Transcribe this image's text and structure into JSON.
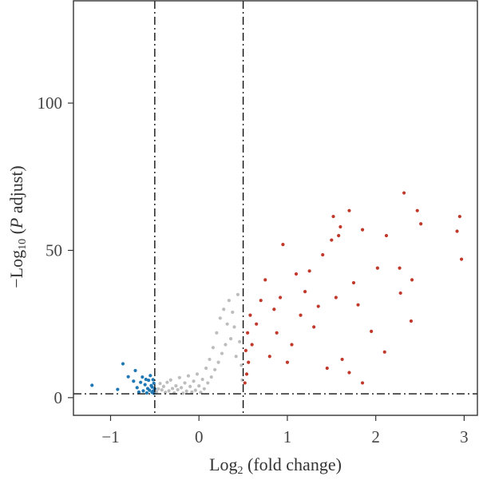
{
  "chart_data": {
    "type": "scatter",
    "title": "",
    "xlabel": {
      "main": "Log",
      "subscript": "2",
      "rest": " (fold change)"
    },
    "ylabel": {
      "prefix": "−Log",
      "subscript": "10",
      "middle": " (",
      "italic": "P",
      "suffix": " adjust)"
    },
    "xlim": [
      -1.42,
      3.15
    ],
    "ylim": [
      -6,
      135
    ],
    "x_ticks": [
      -1,
      0,
      1,
      2,
      3
    ],
    "x_tick_labels": [
      "−1",
      "0",
      "1",
      "2",
      "3"
    ],
    "y_ticks": [
      0,
      50,
      100
    ],
    "y_tick_labels": [
      "0",
      "50",
      "100"
    ],
    "grid": false,
    "legend": "none",
    "thresholds": {
      "log2fc_lower": -0.5,
      "log2fc_upper": 0.5,
      "neg_log10_padj": 1.3
    },
    "colors": {
      "up": "#c0392b",
      "down": "#1f77b4",
      "ns": "#bdbdbd",
      "threshold_line": "#111111"
    },
    "series": [
      {
        "group": "down",
        "points": [
          [
            -1.21,
            4.2
          ],
          [
            -0.92,
            2.8
          ],
          [
            -0.86,
            11.5
          ],
          [
            -0.8,
            7.1
          ],
          [
            -0.74,
            5.6
          ],
          [
            -0.72,
            9.2
          ],
          [
            -0.7,
            3.4
          ],
          [
            -0.68,
            1.9
          ],
          [
            -0.66,
            5.2
          ],
          [
            -0.64,
            7.0
          ],
          [
            -0.63,
            2.3
          ],
          [
            -0.61,
            4.4
          ],
          [
            -0.6,
            6.2
          ],
          [
            -0.59,
            1.6
          ],
          [
            -0.58,
            3.1
          ],
          [
            -0.57,
            5.9
          ],
          [
            -0.56,
            2.5
          ],
          [
            -0.55,
            7.5
          ],
          [
            -0.54,
            4.1
          ],
          [
            -0.53,
            1.8
          ],
          [
            -0.53,
            3.6
          ],
          [
            -0.52,
            6.1
          ],
          [
            -0.52,
            2.2
          ],
          [
            -0.51,
            4.9
          ],
          [
            -0.51,
            1.5
          ],
          [
            -0.5,
            3.0
          ]
        ]
      },
      {
        "group": "up",
        "points": [
          [
            2.32,
            69.5
          ],
          [
            2.95,
            61.5
          ],
          [
            2.97,
            47.0
          ],
          [
            2.47,
            63.5
          ],
          [
            2.51,
            59.0
          ],
          [
            2.92,
            56.5
          ],
          [
            1.7,
            63.5
          ],
          [
            1.85,
            57.0
          ],
          [
            2.12,
            55.0
          ],
          [
            2.02,
            44.0
          ],
          [
            2.27,
            44.0
          ],
          [
            2.41,
            40.0
          ],
          [
            2.1,
            15.5
          ],
          [
            1.95,
            22.5
          ],
          [
            2.4,
            26.0
          ],
          [
            2.28,
            35.5
          ],
          [
            1.58,
            55.0
          ],
          [
            1.5,
            53.5
          ],
          [
            1.6,
            58.0
          ],
          [
            1.52,
            61.5
          ],
          [
            1.4,
            48.5
          ],
          [
            1.75,
            39.0
          ],
          [
            1.8,
            31.5
          ],
          [
            1.55,
            34.0
          ],
          [
            1.62,
            13.0
          ],
          [
            1.7,
            8.5
          ],
          [
            1.85,
            5.0
          ],
          [
            1.2,
            36.0
          ],
          [
            1.1,
            42.0
          ],
          [
            1.25,
            43.0
          ],
          [
            0.95,
            52.0
          ],
          [
            0.88,
            22.0
          ],
          [
            0.75,
            40.0
          ],
          [
            0.85,
            30.0
          ],
          [
            0.92,
            34.0
          ],
          [
            1.0,
            12.0
          ],
          [
            1.05,
            18.0
          ],
          [
            0.8,
            14.0
          ],
          [
            1.15,
            28.0
          ],
          [
            1.3,
            24.0
          ],
          [
            1.45,
            10.0
          ],
          [
            1.35,
            31.0
          ],
          [
            0.7,
            33.0
          ],
          [
            0.65,
            25.0
          ],
          [
            0.6,
            18.0
          ],
          [
            0.58,
            28.0
          ],
          [
            0.56,
            12.0
          ],
          [
            0.55,
            22.0
          ],
          [
            0.54,
            8.0
          ],
          [
            0.53,
            16.0
          ],
          [
            0.52,
            5.0
          ]
        ]
      },
      {
        "group": "ns",
        "points": [
          [
            -0.48,
            2.0
          ],
          [
            -0.46,
            3.0
          ],
          [
            -0.44,
            4.8
          ],
          [
            -0.42,
            2.6
          ],
          [
            -0.4,
            3.8
          ],
          [
            -0.38,
            1.8
          ],
          [
            -0.36,
            5.2
          ],
          [
            -0.34,
            2.3
          ],
          [
            -0.32,
            6.0
          ],
          [
            -0.3,
            3.1
          ],
          [
            -0.28,
            1.6
          ],
          [
            -0.26,
            4.0
          ],
          [
            -0.24,
            2.7
          ],
          [
            -0.22,
            6.8
          ],
          [
            -0.2,
            3.4
          ],
          [
            -0.18,
            1.5
          ],
          [
            -0.16,
            5.0
          ],
          [
            -0.14,
            2.2
          ],
          [
            -0.12,
            7.4
          ],
          [
            -0.1,
            3.8
          ],
          [
            -0.08,
            1.9
          ],
          [
            -0.06,
            5.6
          ],
          [
            -0.04,
            2.5
          ],
          [
            -0.02,
            8.0
          ],
          [
            0.0,
            4.0
          ],
          [
            0.02,
            1.8
          ],
          [
            0.04,
            6.2
          ],
          [
            0.06,
            3.0
          ],
          [
            0.08,
            10.0
          ],
          [
            0.1,
            5.0
          ],
          [
            0.12,
            13.0
          ],
          [
            0.14,
            7.0
          ],
          [
            0.16,
            17.0
          ],
          [
            0.18,
            9.5
          ],
          [
            0.2,
            22.0
          ],
          [
            0.22,
            12.0
          ],
          [
            0.24,
            27.0
          ],
          [
            0.26,
            15.0
          ],
          [
            0.28,
            30.0
          ],
          [
            0.3,
            18.0
          ],
          [
            0.32,
            25.0
          ],
          [
            0.34,
            33.0
          ],
          [
            0.36,
            20.0
          ],
          [
            0.38,
            29.0
          ],
          [
            0.4,
            24.0
          ],
          [
            0.42,
            14.0
          ],
          [
            0.44,
            35.0
          ],
          [
            0.46,
            19.0
          ],
          [
            0.48,
            11.0
          ],
          [
            0.49,
            6.0
          ]
        ]
      }
    ]
  }
}
